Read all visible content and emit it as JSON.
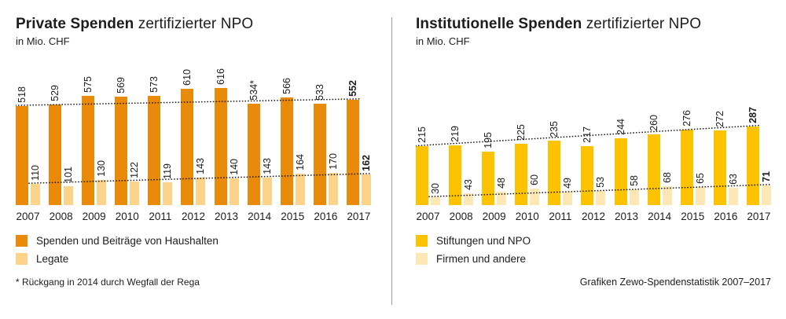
{
  "footer": {
    "credit": "Grafiken Zewo-Spendenstatistik 2007–2017"
  },
  "chart_data": [
    {
      "type": "bar",
      "title_bold": "Private Spenden",
      "title_rest": "zertifizierter NPO",
      "subtitle": "in Mio. CHF",
      "categories": [
        "2007",
        "2008",
        "2009",
        "2010",
        "2011",
        "2012",
        "2013",
        "2014",
        "2015",
        "2016",
        "2017"
      ],
      "series": [
        {
          "name": "Spenden und Beiträge von Haushalten",
          "color": "#EA8A0A",
          "values": [
            518,
            529,
            575,
            569,
            573,
            610,
            616,
            534,
            566,
            533,
            552
          ],
          "labels": [
            "518",
            "529",
            "575",
            "569",
            "573",
            "610",
            "616",
            "534*",
            "566",
            "533",
            "552"
          ]
        },
        {
          "name": "Legate",
          "color": "#FBD38B",
          "values": [
            110,
            101,
            130,
            122,
            119,
            143,
            140,
            143,
            164,
            170,
            162
          ],
          "labels": [
            "110",
            "101",
            "130",
            "122",
            "119",
            "143",
            "140",
            "143",
            "164",
            "170",
            "162"
          ]
        }
      ],
      "ylim": [
        0,
        660
      ],
      "grid": false,
      "trend_lines": "dotted straight line from first to last bar top, per series",
      "legend_position": "bottom-left",
      "footnote": "* Rückgang in 2014 durch Wegfall der Rega"
    },
    {
      "type": "bar",
      "title_bold": "Institutionelle Spenden",
      "title_rest": "zertifizierter NPO",
      "subtitle": "in Mio. CHF",
      "categories": [
        "2007",
        "2008",
        "2009",
        "2010",
        "2011",
        "2012",
        "2013",
        "2014",
        "2015",
        "2016",
        "2017"
      ],
      "series": [
        {
          "name": "Stiftungen und NPO",
          "color": "#FDC300",
          "values": [
            215,
            219,
            195,
            225,
            235,
            217,
            244,
            260,
            276,
            272,
            287
          ],
          "labels": [
            "215",
            "219",
            "195",
            "225",
            "235",
            "217",
            "244",
            "260",
            "276",
            "272",
            "287"
          ]
        },
        {
          "name": "Firmen und andere",
          "color": "#FDE8B5",
          "values": [
            30,
            43,
            48,
            60,
            49,
            53,
            58,
            68,
            65,
            63,
            71
          ],
          "labels": [
            "30",
            "43",
            "48",
            "60",
            "49",
            "53",
            "58",
            "68",
            "65",
            "63",
            "71"
          ]
        }
      ],
      "ylim": [
        0,
        460
      ],
      "grid": false,
      "trend_lines": "dotted straight line from first to last bar top, per series",
      "legend_position": "bottom-left",
      "footnote": ""
    }
  ]
}
